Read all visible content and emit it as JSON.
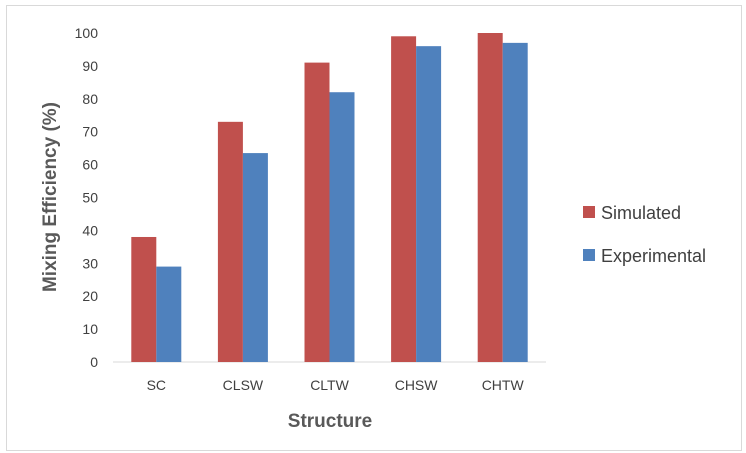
{
  "chart_data": {
    "type": "bar",
    "title": "",
    "xlabel": "Structure",
    "ylabel": "Mixing Efficiency (%)",
    "ylim": [
      0,
      100
    ],
    "yticks": [
      0,
      10,
      20,
      30,
      40,
      50,
      60,
      70,
      80,
      90,
      100
    ],
    "categories": [
      "SC",
      "CLSW",
      "CLTW",
      "CHSW",
      "CHTW"
    ],
    "series": [
      {
        "name": "Simulated",
        "color": "#c0504d",
        "values": [
          38,
          73,
          91,
          99,
          100
        ]
      },
      {
        "name": "Experimental",
        "color": "#4f81bd",
        "values": [
          29,
          63.5,
          82,
          96,
          97
        ]
      }
    ],
    "grid": false,
    "legend_position": "right"
  }
}
